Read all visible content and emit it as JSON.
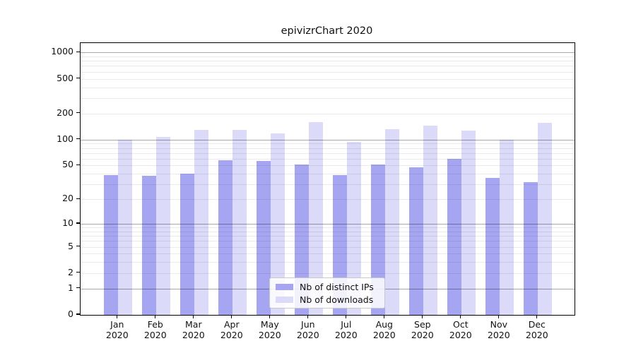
{
  "title": "epivizrChart 2020",
  "chart_data": {
    "type": "bar",
    "title": "epivizrChart 2020",
    "x_month_labels": [
      "Jan",
      "Feb",
      "Mar",
      "Apr",
      "May",
      "Jun",
      "Jul",
      "Aug",
      "Sep",
      "Oct",
      "Nov",
      "Dec"
    ],
    "x_year_label": "2020",
    "series": [
      {
        "name": "Nb of distinct IPs",
        "color": "#a6a5f2",
        "values": [
          39,
          38,
          40,
          58,
          56,
          51,
          39,
          51,
          48,
          60,
          36,
          32
        ]
      },
      {
        "name": "Nb of downloads",
        "color": "#dbdaf8",
        "values": [
          100,
          107,
          129,
          129,
          118,
          158,
          94,
          131,
          145,
          127,
          100,
          156
        ]
      }
    ],
    "y_ticks": [
      1000,
      500,
      200,
      100,
      50,
      20,
      10,
      5,
      2,
      1,
      0
    ],
    "y_scale": "log10(value+1)",
    "ylim": [
      0,
      1280
    ],
    "grid": "horizontal major+minor",
    "legend_position": "inside-bottom-center"
  }
}
